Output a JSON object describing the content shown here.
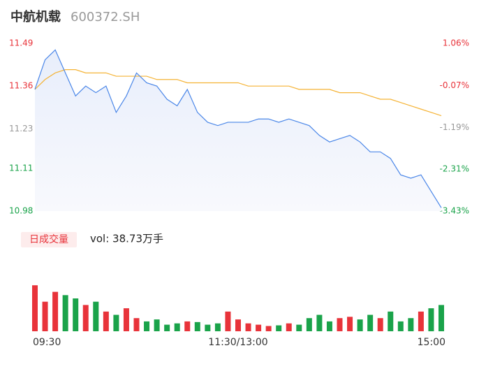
{
  "header": {
    "name": "中航机载",
    "code": "600372.SH"
  },
  "chart_data": {
    "type": "intraday",
    "x": [
      0,
      6,
      12,
      18,
      24,
      30,
      36,
      42,
      48,
      54,
      60,
      66,
      72,
      78,
      84,
      90,
      96,
      102,
      108,
      114,
      120,
      126,
      132,
      138,
      144,
      150,
      156,
      162,
      168,
      174,
      180,
      186,
      192,
      198,
      204,
      210,
      216,
      222,
      228,
      234,
      240
    ],
    "xlim": [
      0,
      240
    ],
    "xticks": [
      {
        "value": 0,
        "label": "09:30"
      },
      {
        "value": 120,
        "label": "11:30/13:00"
      },
      {
        "value": 240,
        "label": "15:00"
      }
    ],
    "ylim": [
      10.98,
      11.49
    ],
    "yticks": [
      11.49,
      11.36,
      11.23,
      11.11,
      10.98
    ],
    "y2lim": [
      -3.43,
      1.06
    ],
    "y2ticks": [
      {
        "value": 1.06,
        "label": "1.06%"
      },
      {
        "value": -0.07,
        "label": "-0.07%"
      },
      {
        "value": -1.19,
        "label": "-1.19%"
      },
      {
        "value": -2.31,
        "label": "-2.31%"
      },
      {
        "value": -3.43,
        "label": "-3.43%"
      }
    ],
    "tick_colors": [
      "#e8333a",
      "#e8333a",
      "#999999",
      "#1aa34a",
      "#1aa34a"
    ],
    "series": [
      {
        "color": "#4a86e8",
        "values": [
          11.35,
          11.44,
          11.47,
          11.4,
          11.33,
          11.36,
          11.34,
          11.36,
          11.28,
          11.33,
          11.4,
          11.37,
          11.36,
          11.32,
          11.3,
          11.35,
          11.28,
          11.25,
          11.24,
          11.25,
          11.25,
          11.25,
          11.26,
          11.26,
          11.25,
          11.26,
          11.25,
          11.24,
          11.21,
          11.19,
          11.2,
          11.21,
          11.19,
          11.16,
          11.16,
          11.14,
          11.09,
          11.08,
          11.09,
          11.04,
          10.99
        ]
      },
      {
        "color": "#f5b335",
        "values": [
          11.35,
          11.38,
          11.4,
          11.41,
          11.41,
          11.4,
          11.4,
          11.4,
          11.39,
          11.39,
          11.39,
          11.39,
          11.38,
          11.38,
          11.38,
          11.37,
          11.37,
          11.37,
          11.37,
          11.37,
          11.37,
          11.36,
          11.36,
          11.36,
          11.36,
          11.36,
          11.35,
          11.35,
          11.35,
          11.35,
          11.34,
          11.34,
          11.34,
          11.33,
          11.32,
          11.32,
          11.31,
          11.3,
          11.29,
          11.28,
          11.27
        ]
      }
    ],
    "volume": {
      "badge": "日成交量",
      "label": "vol: 38.73万手",
      "up_color": "#e8333a",
      "down_color": "#1aa34a",
      "vlim": [
        0,
        100
      ],
      "values": [
        70,
        45,
        60,
        55,
        50,
        40,
        45,
        30,
        25,
        35,
        20,
        15,
        18,
        10,
        12,
        15,
        14,
        10,
        12,
        30,
        18,
        12,
        10,
        8,
        9,
        12,
        10,
        20,
        25,
        15,
        20,
        22,
        18,
        25,
        20,
        30,
        15,
        20,
        30,
        35,
        40
      ]
    }
  }
}
